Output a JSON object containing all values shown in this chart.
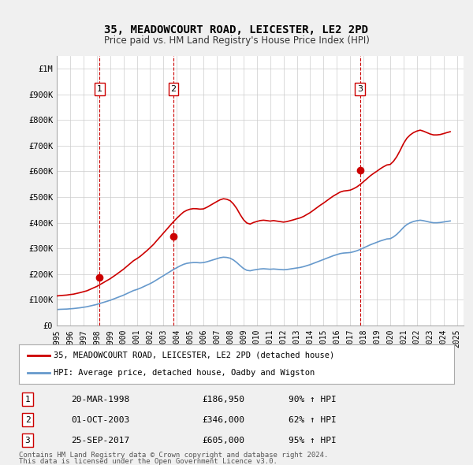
{
  "title": "35, MEADOWCOURT ROAD, LEICESTER, LE2 2PD",
  "subtitle": "Price paid vs. HM Land Registry's House Price Index (HPI)",
  "ylabel_ticks": [
    "£0",
    "£100K",
    "£200K",
    "£300K",
    "£400K",
    "£500K",
    "£600K",
    "£700K",
    "£800K",
    "£900K",
    "£1M"
  ],
  "ytick_vals": [
    0,
    100000,
    200000,
    300000,
    400000,
    500000,
    600000,
    700000,
    800000,
    900000,
    1000000
  ],
  "ylim": [
    0,
    1050000
  ],
  "xlim_start": 1995.0,
  "xlim_end": 2025.5,
  "bg_color": "#f0f0f0",
  "plot_bg_color": "#ffffff",
  "grid_color": "#cccccc",
  "red_line_color": "#cc0000",
  "blue_line_color": "#6699cc",
  "sale_marker_color": "#cc0000",
  "dashed_line_color": "#cc0000",
  "legend_label_red": "35, MEADOWCOURT ROAD, LEICESTER, LE2 2PD (detached house)",
  "legend_label_blue": "HPI: Average price, detached house, Oadby and Wigston",
  "footer1": "Contains HM Land Registry data © Crown copyright and database right 2024.",
  "footer2": "This data is licensed under the Open Government Licence v3.0.",
  "transactions": [
    {
      "num": 1,
      "date": "20-MAR-1998",
      "price": 186950,
      "pct": "90%",
      "year": 1998.22
    },
    {
      "num": 2,
      "date": "01-OCT-2003",
      "price": 346000,
      "pct": "62%",
      "year": 2003.75
    },
    {
      "num": 3,
      "date": "25-SEP-2017",
      "price": 605000,
      "pct": "95%",
      "year": 2017.73
    }
  ],
  "hpi_years": [
    1995.0,
    1995.25,
    1995.5,
    1995.75,
    1996.0,
    1996.25,
    1996.5,
    1996.75,
    1997.0,
    1997.25,
    1997.5,
    1997.75,
    1998.0,
    1998.25,
    1998.5,
    1998.75,
    1999.0,
    1999.25,
    1999.5,
    1999.75,
    2000.0,
    2000.25,
    2000.5,
    2000.75,
    2001.0,
    2001.25,
    2001.5,
    2001.75,
    2002.0,
    2002.25,
    2002.5,
    2002.75,
    2003.0,
    2003.25,
    2003.5,
    2003.75,
    2004.0,
    2004.25,
    2004.5,
    2004.75,
    2005.0,
    2005.25,
    2005.5,
    2005.75,
    2006.0,
    2006.25,
    2006.5,
    2006.75,
    2007.0,
    2007.25,
    2007.5,
    2007.75,
    2008.0,
    2008.25,
    2008.5,
    2008.75,
    2009.0,
    2009.25,
    2009.5,
    2009.75,
    2010.0,
    2010.25,
    2010.5,
    2010.75,
    2011.0,
    2011.25,
    2011.5,
    2011.75,
    2012.0,
    2012.25,
    2012.5,
    2012.75,
    2013.0,
    2013.25,
    2013.5,
    2013.75,
    2014.0,
    2014.25,
    2014.5,
    2014.75,
    2015.0,
    2015.25,
    2015.5,
    2015.75,
    2016.0,
    2016.25,
    2016.5,
    2016.75,
    2017.0,
    2017.25,
    2017.5,
    2017.75,
    2018.0,
    2018.25,
    2018.5,
    2018.75,
    2019.0,
    2019.25,
    2019.5,
    2019.75,
    2020.0,
    2020.25,
    2020.5,
    2020.75,
    2021.0,
    2021.25,
    2021.5,
    2021.75,
    2022.0,
    2022.25,
    2022.5,
    2022.75,
    2023.0,
    2023.25,
    2023.5,
    2023.75,
    2024.0,
    2024.25,
    2024.5
  ],
  "hpi_values": [
    62000,
    63000,
    63500,
    64000,
    65000,
    66000,
    67500,
    69000,
    71000,
    73000,
    76000,
    79000,
    82000,
    86000,
    90000,
    94000,
    98000,
    103000,
    108000,
    113000,
    118000,
    124000,
    130000,
    136000,
    140000,
    145000,
    151000,
    157000,
    163000,
    170000,
    178000,
    186000,
    194000,
    202000,
    210000,
    218000,
    225000,
    232000,
    238000,
    242000,
    244000,
    245000,
    245000,
    244000,
    245000,
    248000,
    252000,
    256000,
    260000,
    264000,
    266000,
    265000,
    262000,
    255000,
    245000,
    233000,
    222000,
    215000,
    213000,
    216000,
    218000,
    220000,
    221000,
    220000,
    219000,
    220000,
    219000,
    218000,
    217000,
    218000,
    220000,
    222000,
    224000,
    226000,
    229000,
    233000,
    237000,
    242000,
    247000,
    252000,
    257000,
    262000,
    267000,
    272000,
    276000,
    280000,
    282000,
    283000,
    284000,
    287000,
    291000,
    296000,
    302000,
    308000,
    314000,
    319000,
    324000,
    329000,
    333000,
    337000,
    338000,
    345000,
    355000,
    368000,
    382000,
    393000,
    400000,
    405000,
    408000,
    410000,
    408000,
    405000,
    402000,
    400000,
    400000,
    401000,
    403000,
    405000,
    407000
  ],
  "hpi_indexed_years": [
    1995.0,
    1995.25,
    1995.5,
    1995.75,
    1996.0,
    1996.25,
    1996.5,
    1996.75,
    1997.0,
    1997.25,
    1997.5,
    1997.75,
    1998.0,
    1998.25,
    1998.5,
    1998.75,
    1999.0,
    1999.25,
    1999.5,
    1999.75,
    2000.0,
    2000.25,
    2000.5,
    2000.75,
    2001.0,
    2001.25,
    2001.5,
    2001.75,
    2002.0,
    2002.25,
    2002.5,
    2002.75,
    2003.0,
    2003.25,
    2003.5,
    2003.75,
    2004.0,
    2004.25,
    2004.5,
    2004.75,
    2005.0,
    2005.25,
    2005.5,
    2005.75,
    2006.0,
    2006.25,
    2006.5,
    2006.75,
    2007.0,
    2007.25,
    2007.5,
    2007.75,
    2008.0,
    2008.25,
    2008.5,
    2008.75,
    2009.0,
    2009.25,
    2009.5,
    2009.75,
    2010.0,
    2010.25,
    2010.5,
    2010.75,
    2011.0,
    2011.25,
    2011.5,
    2011.75,
    2012.0,
    2012.25,
    2012.5,
    2012.75,
    2013.0,
    2013.25,
    2013.5,
    2013.75,
    2014.0,
    2014.25,
    2014.5,
    2014.75,
    2015.0,
    2015.25,
    2015.5,
    2015.75,
    2016.0,
    2016.25,
    2016.5,
    2016.75,
    2017.0,
    2017.25,
    2017.5,
    2017.75,
    2018.0,
    2018.25,
    2018.5,
    2018.75,
    2019.0,
    2019.25,
    2019.5,
    2019.75,
    2020.0,
    2020.25,
    2020.5,
    2020.75,
    2021.0,
    2021.25,
    2021.5,
    2021.75,
    2022.0,
    2022.25,
    2022.5,
    2022.75,
    2023.0,
    2023.25,
    2023.5,
    2023.75,
    2024.0,
    2024.25,
    2024.5
  ],
  "red_indexed_values": [
    115000,
    116500,
    117500,
    118500,
    120500,
    122000,
    125000,
    128000,
    131500,
    135000,
    140500,
    146500,
    152000,
    159500,
    167000,
    174500,
    182000,
    191000,
    200000,
    209500,
    219000,
    230000,
    241000,
    252000,
    260000,
    269000,
    280000,
    291000,
    303000,
    315500,
    330500,
    345000,
    360000,
    374500,
    389500,
    404000,
    417500,
    430000,
    441500,
    448500,
    453000,
    455000,
    454500,
    453000,
    454000,
    460000,
    467500,
    475000,
    482500,
    489500,
    493500,
    491500,
    486000,
    473000,
    455000,
    432000,
    412000,
    399000,
    395000,
    401000,
    405000,
    408500,
    410000,
    408500,
    406500,
    408500,
    406500,
    404500,
    402500,
    404500,
    408000,
    411500,
    415500,
    419000,
    424500,
    432000,
    439500,
    449000,
    458500,
    468000,
    476500,
    486000,
    495500,
    504500,
    512000,
    519500,
    523500,
    525000,
    527000,
    532500,
    539500,
    549000,
    560000,
    571000,
    582500,
    592000,
    600500,
    610000,
    618000,
    625000,
    627000,
    639500,
    658000,
    682000,
    708500,
    729000,
    742000,
    751000,
    757000,
    760500,
    756500,
    751000,
    745500,
    742000,
    742000,
    743500,
    747000,
    751000,
    754500
  ]
}
